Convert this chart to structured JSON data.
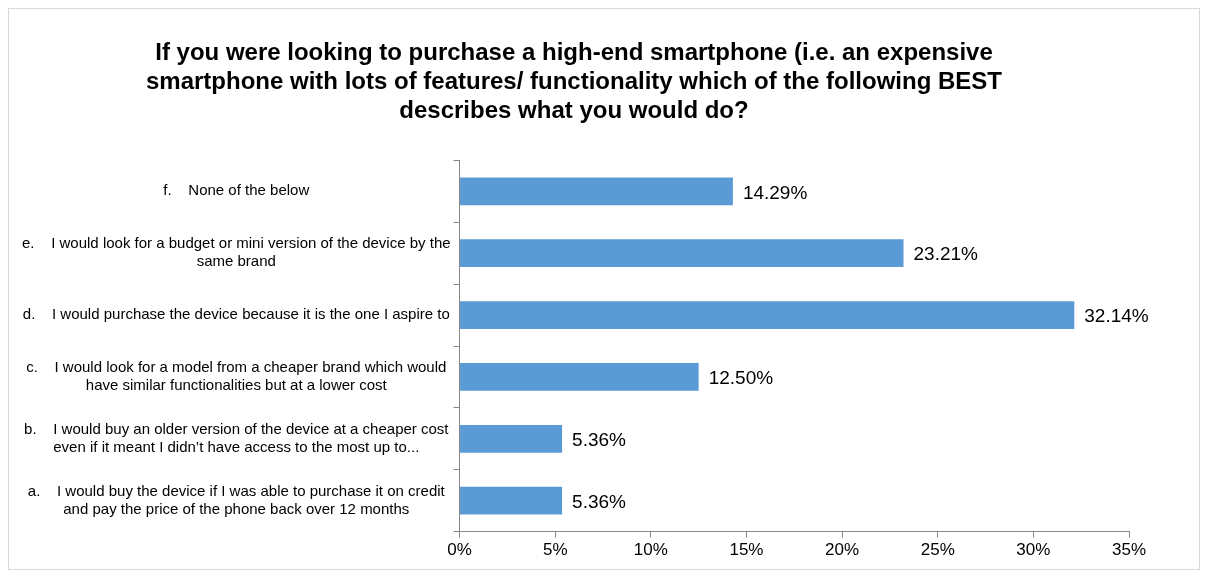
{
  "chart_data": {
    "type": "bar",
    "orientation": "horizontal",
    "title": "If you were looking to purchase a high-end smartphone (i.e. an expensive smartphone with lots of features/ functionality which of the following BEST describes what you would do?",
    "categories": [
      "f.    None of the below",
      "e.    I would look for a budget or mini version of the device by the same brand",
      "d.    I would purchase the device because it is the one I aspire to",
      "c.    I would look for a model from a cheaper brand which would have similar functionalities but at a lower cost",
      "b.    I would buy an older version of the device at a cheaper cost even if it meant I didn’t have access to the most up to...",
      "a.    I would buy the device if I was able to purchase it on credit and pay the price of the phone back over 12 months"
    ],
    "values": [
      14.29,
      23.21,
      32.14,
      12.5,
      5.36,
      5.36
    ],
    "value_labels": [
      "14.29%",
      "23.21%",
      "32.14%",
      "12.50%",
      "5.36%",
      "5.36%"
    ],
    "color": "#5b9bd5",
    "xlim": [
      0,
      35
    ],
    "xticks": [
      {
        "value": 0,
        "label": "0%"
      },
      {
        "value": 5,
        "label": "5%"
      },
      {
        "value": 10,
        "label": "10%"
      },
      {
        "value": 15,
        "label": "15%"
      },
      {
        "value": 20,
        "label": "20%"
      },
      {
        "value": 25,
        "label": "25%"
      },
      {
        "value": 30,
        "label": "30%"
      },
      {
        "value": 35,
        "label": "35%"
      }
    ],
    "grid": false,
    "legend": false
  }
}
